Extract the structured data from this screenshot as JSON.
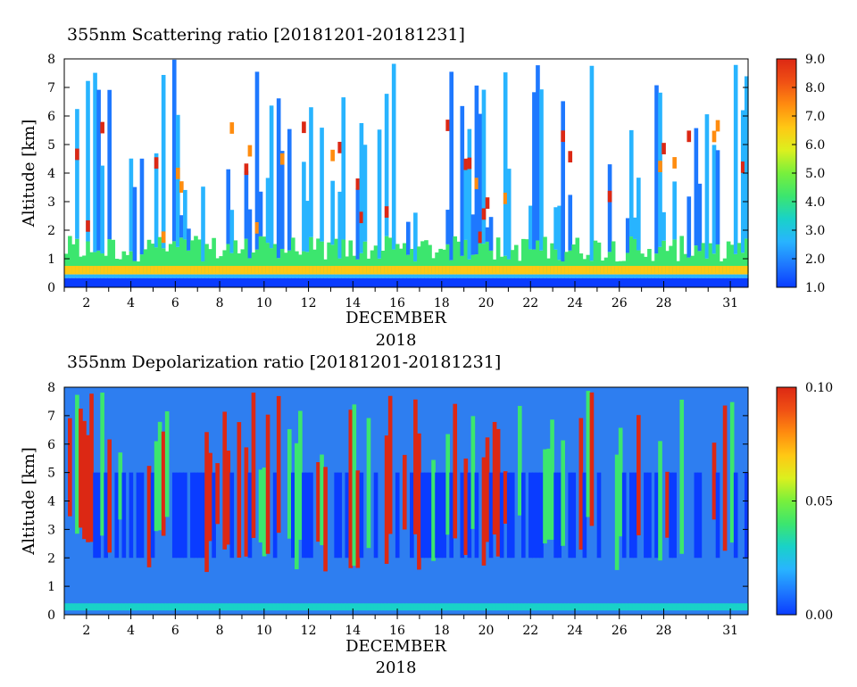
{
  "chart_data": [
    {
      "type": "heatmap",
      "title": "355nm Scattering ratio [20181201-20181231]",
      "xlabel": "DECEMBER",
      "xlabel2": "2018",
      "ylabel": "Altitude [km]",
      "xlim": [
        1,
        31.8
      ],
      "ylim": [
        0,
        8
      ],
      "x_ticks": [
        2,
        4,
        6,
        8,
        10,
        12,
        14,
        16,
        18,
        20,
        22,
        24,
        26,
        28,
        31
      ],
      "y_ticks": [
        0,
        1,
        2,
        3,
        4,
        5,
        6,
        7,
        8
      ],
      "colorbar": {
        "min": 1.0,
        "max": 9.0,
        "ticks": [
          "1.0",
          "2.0",
          "3.0",
          "4.0",
          "5.0",
          "6.0",
          "7.0",
          "8.0",
          "9.0"
        ]
      },
      "colormap": [
        "#0a3cff",
        "#1e78ff",
        "#28b4ff",
        "#19d2c8",
        "#3ce66e",
        "#78f03c",
        "#dcf01e",
        "#ffc814",
        "#ff8c0f",
        "#f05014",
        "#dc2814"
      ]
    },
    {
      "type": "heatmap",
      "title": "355nm Depolarization ratio [20181201-20181231]",
      "xlabel": "DECEMBER",
      "xlabel2": "2018",
      "ylabel": "Altitude [km]",
      "xlim": [
        1,
        31.8
      ],
      "ylim": [
        0,
        8
      ],
      "x_ticks": [
        2,
        4,
        6,
        8,
        10,
        12,
        14,
        16,
        18,
        20,
        22,
        24,
        26,
        28,
        31
      ],
      "y_ticks": [
        0,
        1,
        2,
        3,
        4,
        5,
        6,
        7,
        8
      ],
      "colorbar": {
        "min": 0.0,
        "max": 0.1,
        "ticks": [
          "0.00",
          "0.05",
          "0.10"
        ]
      },
      "colormap": [
        "#0a3cff",
        "#1e78ff",
        "#28b4ff",
        "#19d2c8",
        "#3ce66e",
        "#78f03c",
        "#dcf01e",
        "#ffc814",
        "#ff8c0f",
        "#f05014",
        "#dc2814"
      ]
    }
  ]
}
